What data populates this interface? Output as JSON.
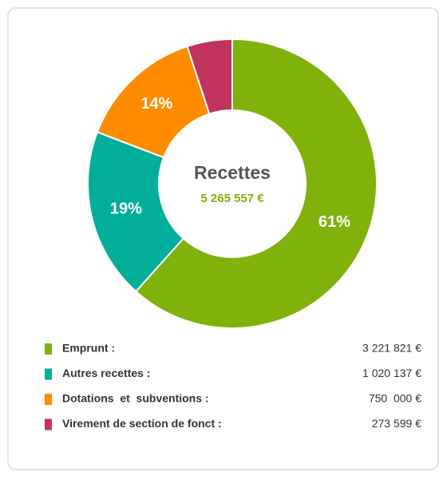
{
  "chart_data": {
    "type": "donut",
    "center_title": "Recettes",
    "center_value": "5 265 557 €",
    "categories": [
      "Emprunt :",
      "Autres recettes :",
      "Dotations  et  subventions :",
      "Virement de section de fonct :"
    ],
    "values": [
      61,
      19,
      14,
      5
    ],
    "value_labels": [
      "61%",
      "19%",
      "14%",
      null
    ],
    "amount_labels": [
      "3 221 821 €",
      "1 020 137 €",
      "750  000 €",
      "273 599 €"
    ],
    "colors": [
      "#7fb20a",
      "#00ae9a",
      "#ff8c00",
      "#c0335c"
    ]
  }
}
